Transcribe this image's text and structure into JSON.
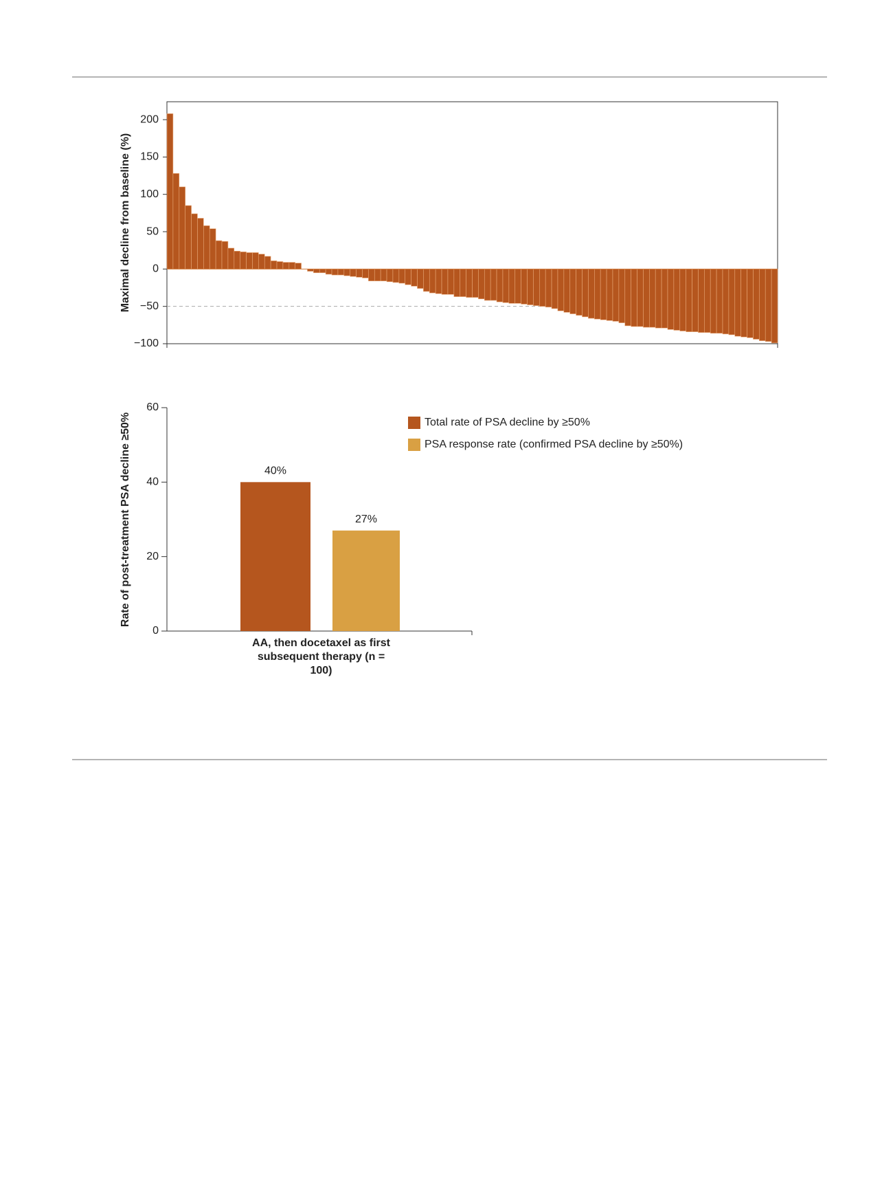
{
  "chart_data": [
    {
      "type": "waterfall",
      "ylabel": "Maximal decline from baseline (%)",
      "values": [
        208,
        128,
        110,
        85,
        74,
        68,
        58,
        54,
        38,
        37,
        28,
        24,
        23,
        22,
        22,
        20,
        17,
        11,
        10,
        9,
        9,
        8,
        0,
        -3,
        -5,
        -5,
        -7,
        -8,
        -8,
        -9,
        -10,
        -11,
        -12,
        -16,
        -16,
        -16,
        -17,
        -18,
        -19,
        -21,
        -23,
        -26,
        -30,
        -32,
        -33,
        -34,
        -34,
        -37,
        -37,
        -38,
        -38,
        -40,
        -42,
        -42,
        -44,
        -45,
        -46,
        -46,
        -47,
        -48,
        -49,
        -50,
        -51,
        -53,
        -56,
        -58,
        -60,
        -62,
        -64,
        -66,
        -67,
        -68,
        -69,
        -70,
        -72,
        -76,
        -77,
        -77,
        -78,
        -78,
        -79,
        -79,
        -81,
        -82,
        -83,
        -84,
        -84,
        -85,
        -85,
        -86,
        -86,
        -87,
        -88,
        -90,
        -91,
        -92,
        -94,
        -96,
        -97,
        -99
      ],
      "color": "#b5561e",
      "reference_line": -50,
      "ylim": [
        -100,
        224
      ],
      "yticks": [
        {
          "value": -100,
          "label": "−100"
        },
        {
          "value": -50,
          "label": "−50"
        },
        0,
        50,
        100,
        150,
        200
      ]
    },
    {
      "type": "bar",
      "ylabel": "Rate of post-treatment PSA decline ≥50%",
      "categories": [
        "AA, then docetaxel as first subsequent therapy (n = 100)"
      ],
      "series": [
        {
          "name": "Total rate of PSA decline by ≥50%",
          "color": "#b5561e",
          "values": [
            40
          ],
          "value_labels": [
            "40%"
          ]
        },
        {
          "name": "PSA response rate (confirmed PSA decline by ≥50%)",
          "color": "#d9a043",
          "values": [
            27
          ],
          "value_labels": [
            "27%"
          ]
        }
      ],
      "ylim": [
        0,
        60
      ],
      "yticks": [
        0,
        20,
        40,
        60
      ],
      "legend": "top-right"
    }
  ]
}
